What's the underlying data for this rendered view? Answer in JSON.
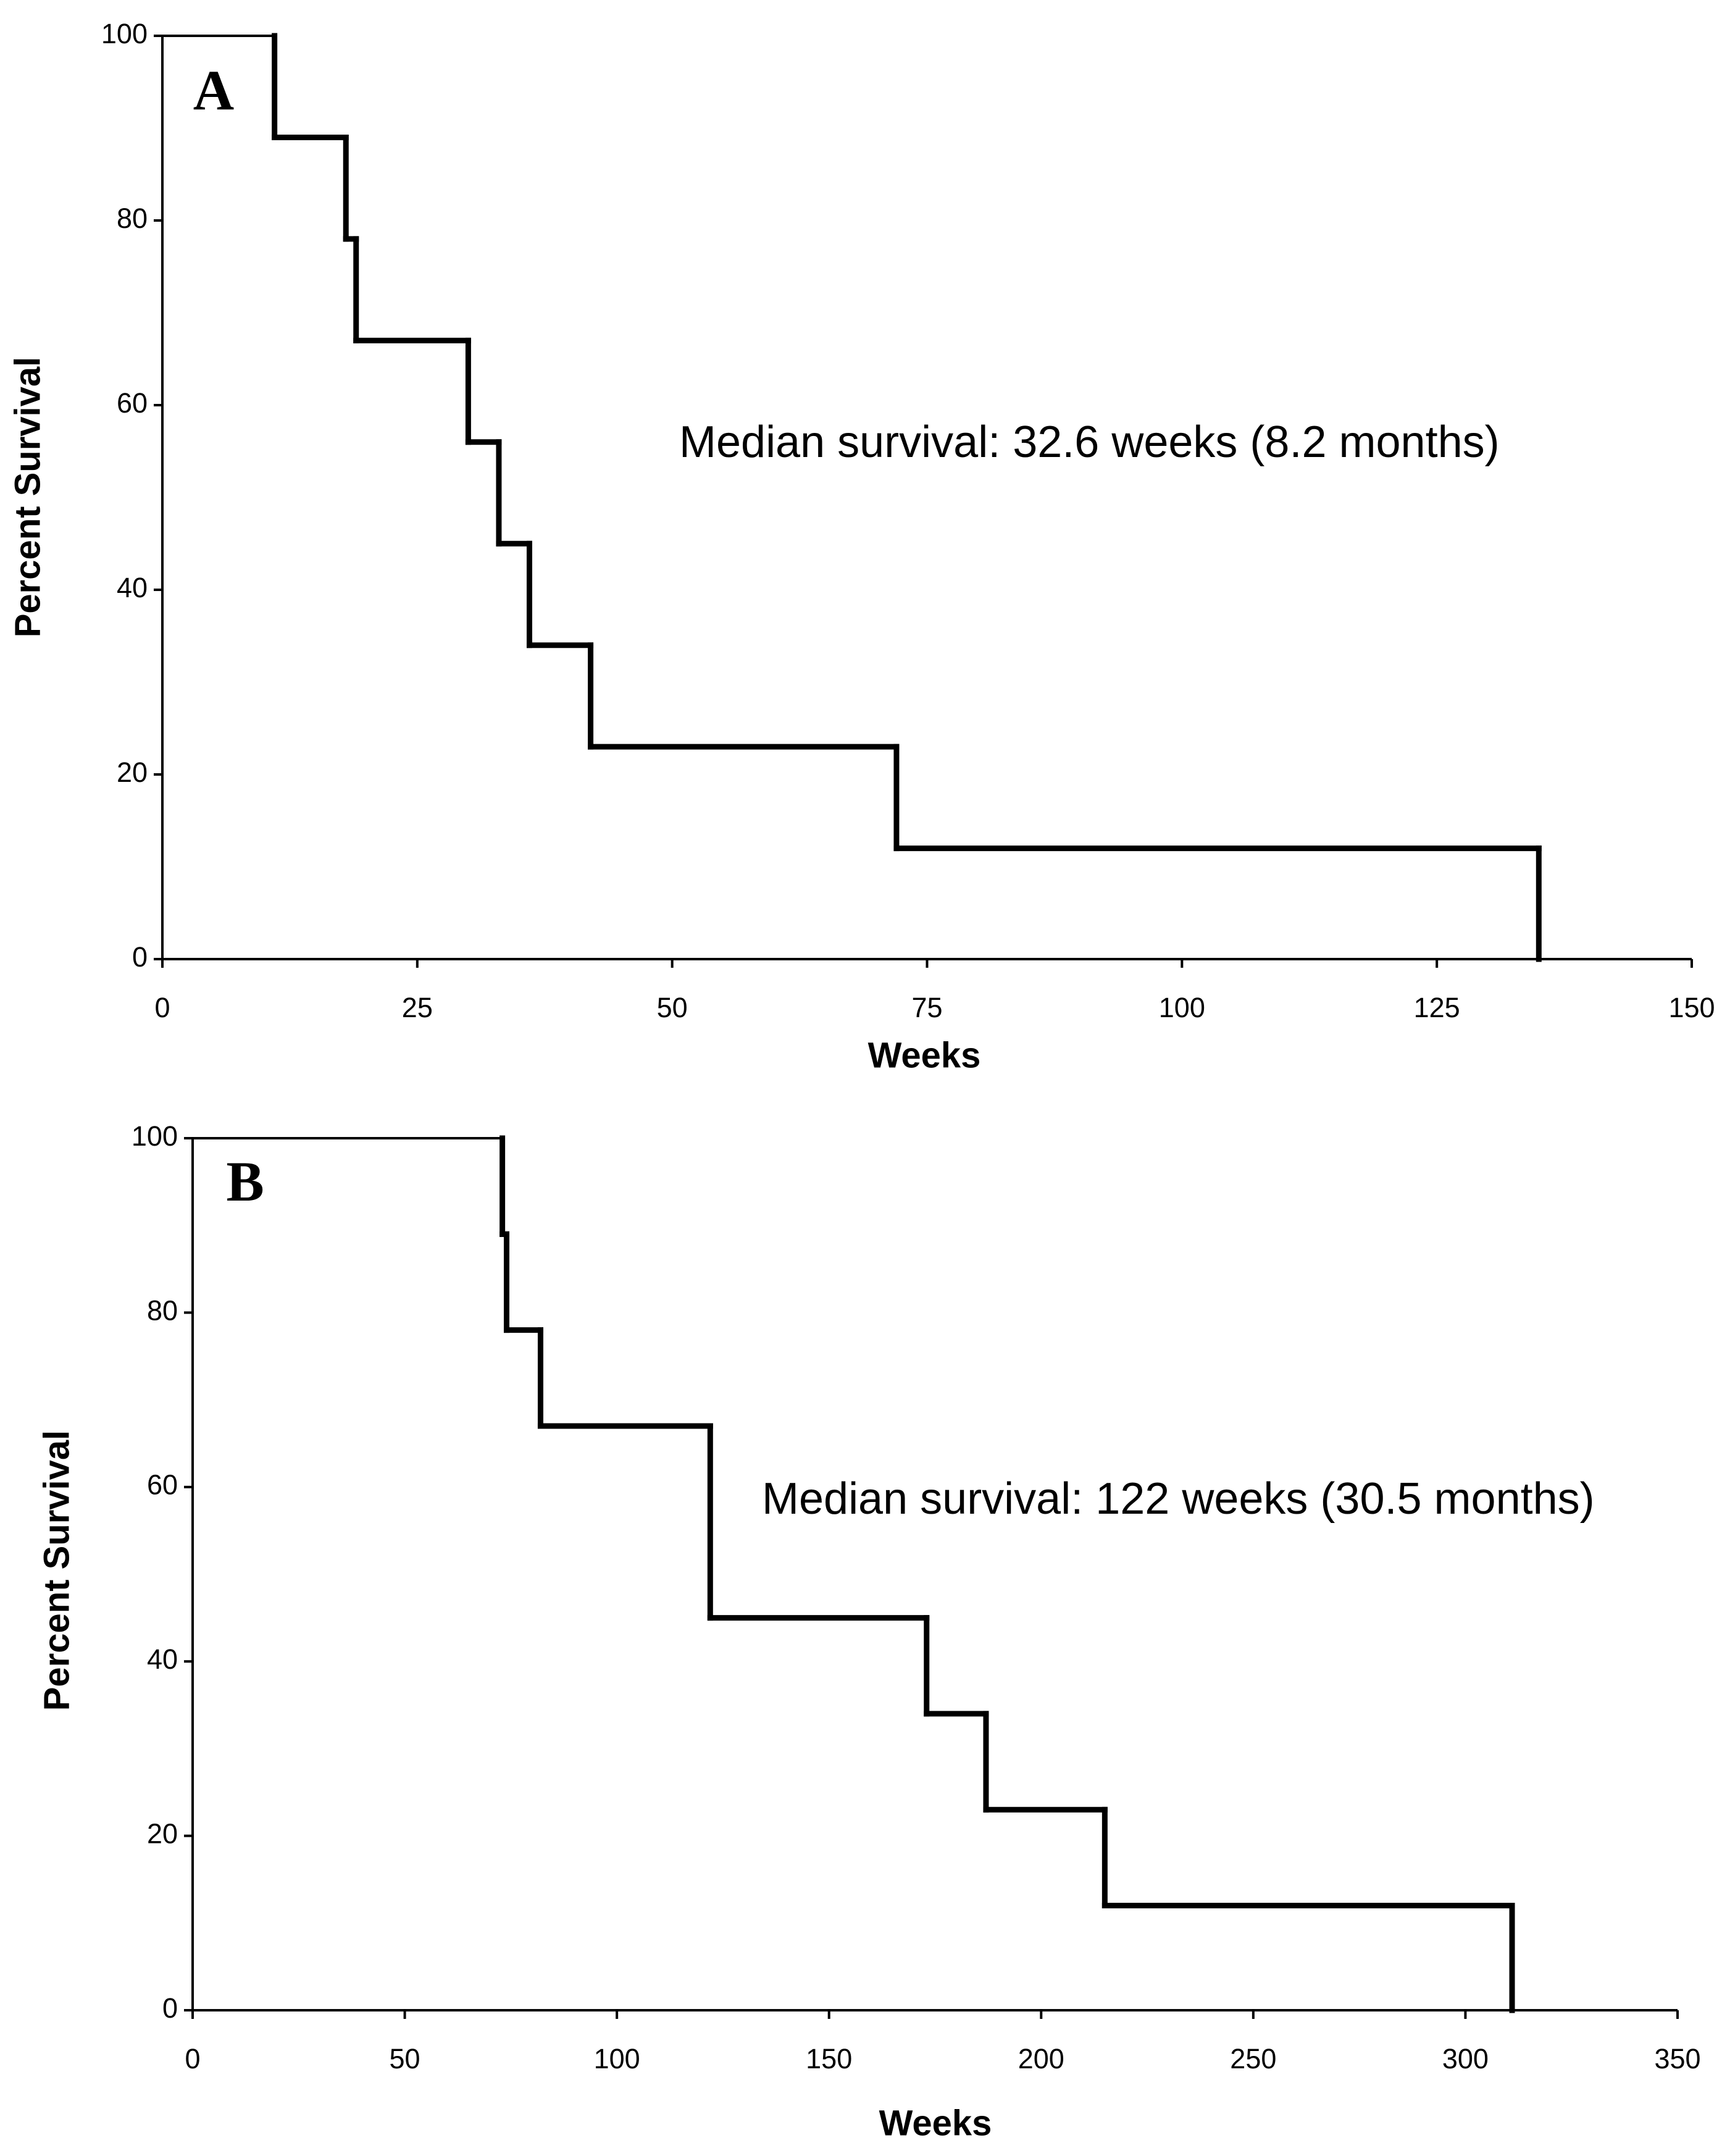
{
  "chart_data": [
    {
      "type": "step",
      "panel_label": "A",
      "annotation": "Median survival: 32.6 weeks (8.2 months)",
      "x_label": "Weeks",
      "y_label": "Percent Survival",
      "x": [
        0,
        11,
        18,
        19,
        30,
        33,
        36,
        42,
        72,
        135
      ],
      "values": [
        100,
        89,
        78,
        67,
        56,
        45,
        34,
        23,
        12,
        0
      ],
      "color": "#000000",
      "xlim": [
        0,
        150
      ],
      "xticks": [
        0,
        25,
        50,
        75,
        100,
        125,
        150
      ],
      "ylim": [
        0,
        100
      ],
      "yticks": [
        0,
        20,
        40,
        60,
        80,
        100
      ]
    },
    {
      "type": "step",
      "panel_label": "B",
      "annotation": "Median survival: 122 weeks (30.5 months)",
      "x_label": "Weeks",
      "y_label": "Percent Survival",
      "x": [
        0,
        73,
        74,
        82,
        122,
        173,
        187,
        215,
        311
      ],
      "values": [
        100,
        89,
        78,
        67,
        45,
        34,
        23,
        12,
        0
      ],
      "color": "#000000",
      "xlim": [
        0,
        350
      ],
      "xticks": [
        0,
        50,
        100,
        150,
        200,
        250,
        300,
        350
      ],
      "ylim": [
        0,
        100
      ],
      "yticks": [
        0,
        20,
        40,
        60,
        80,
        100
      ]
    }
  ]
}
